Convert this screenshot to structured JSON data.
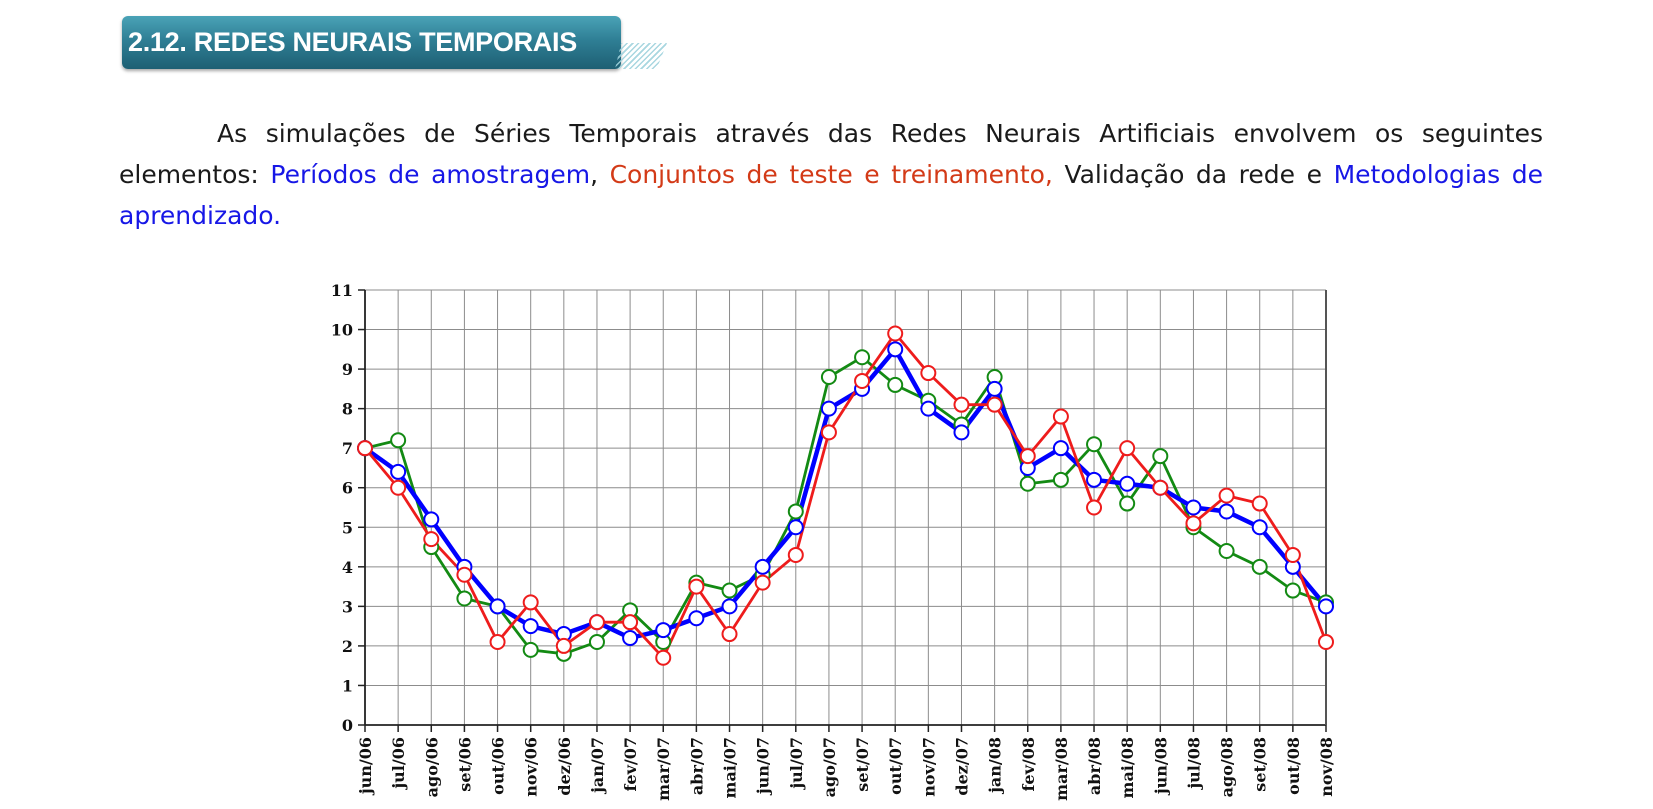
{
  "section": {
    "title": "2.12. REDES NEURAIS TEMPORAIS"
  },
  "paragraph": {
    "part1": "As simulações de Séries Temporais através das Redes Neurais Artificiais envolvem os seguintes elementos: ",
    "link1": "Períodos de amostragem",
    "sep1": ", ",
    "link2": "Conjuntos de teste e treinamento,",
    "part2": " Validação da rede e ",
    "link3": "Metodologias de aprendizado."
  },
  "colors": {
    "blue_text": "#1717e6",
    "red_text": "#d33a17",
    "banner": "#2f7f95"
  },
  "chart_data": {
    "type": "line",
    "title": "",
    "xlabel": "",
    "ylabel": "",
    "ylim": [
      0,
      11
    ],
    "yticks": [
      0,
      1,
      2,
      3,
      4,
      5,
      6,
      7,
      8,
      9,
      10,
      11
    ],
    "grid": true,
    "legend": "none",
    "categories": [
      "jun/06",
      "jul/06",
      "ago/06",
      "set/06",
      "out/06",
      "nov/06",
      "dez/06",
      "jan/07",
      "fev/07",
      "mar/07",
      "abr/07",
      "mai/07",
      "jun/07",
      "jul/07",
      "ago/07",
      "set/07",
      "out/07",
      "nov/07",
      "dez/07",
      "jan/08",
      "fev/08",
      "mar/08",
      "abr/08",
      "mai/08",
      "jun/08",
      "jul/08",
      "ago/08",
      "set/08",
      "out/08",
      "nov/08"
    ],
    "series": [
      {
        "color": "#0000ff",
        "values": [
          7.0,
          6.4,
          5.2,
          4.0,
          3.0,
          2.5,
          2.3,
          2.6,
          2.2,
          2.4,
          2.7,
          3.0,
          4.0,
          5.0,
          8.0,
          8.5,
          9.5,
          8.0,
          7.4,
          8.5,
          6.5,
          7.0,
          6.2,
          6.1,
          6.0,
          5.5,
          5.4,
          5.0,
          4.0,
          3.0
        ]
      },
      {
        "color": "#138a13",
        "values": [
          7.0,
          7.2,
          4.5,
          3.2,
          3.0,
          1.9,
          1.8,
          2.1,
          2.9,
          2.1,
          3.6,
          3.4,
          3.8,
          5.4,
          8.8,
          9.3,
          8.6,
          8.2,
          7.6,
          8.8,
          6.1,
          6.2,
          7.1,
          5.6,
          6.8,
          5.0,
          4.4,
          4.0,
          3.4,
          3.1
        ]
      },
      {
        "color": "#ee1c1c",
        "values": [
          7.0,
          6.0,
          4.7,
          3.8,
          2.1,
          3.1,
          2.0,
          2.6,
          2.6,
          1.7,
          3.5,
          2.3,
          3.6,
          4.3,
          7.4,
          8.7,
          9.9,
          8.9,
          8.1,
          8.1,
          6.8,
          7.8,
          5.5,
          7.0,
          6.0,
          5.1,
          5.8,
          5.6,
          4.3,
          2.1
        ]
      }
    ]
  }
}
